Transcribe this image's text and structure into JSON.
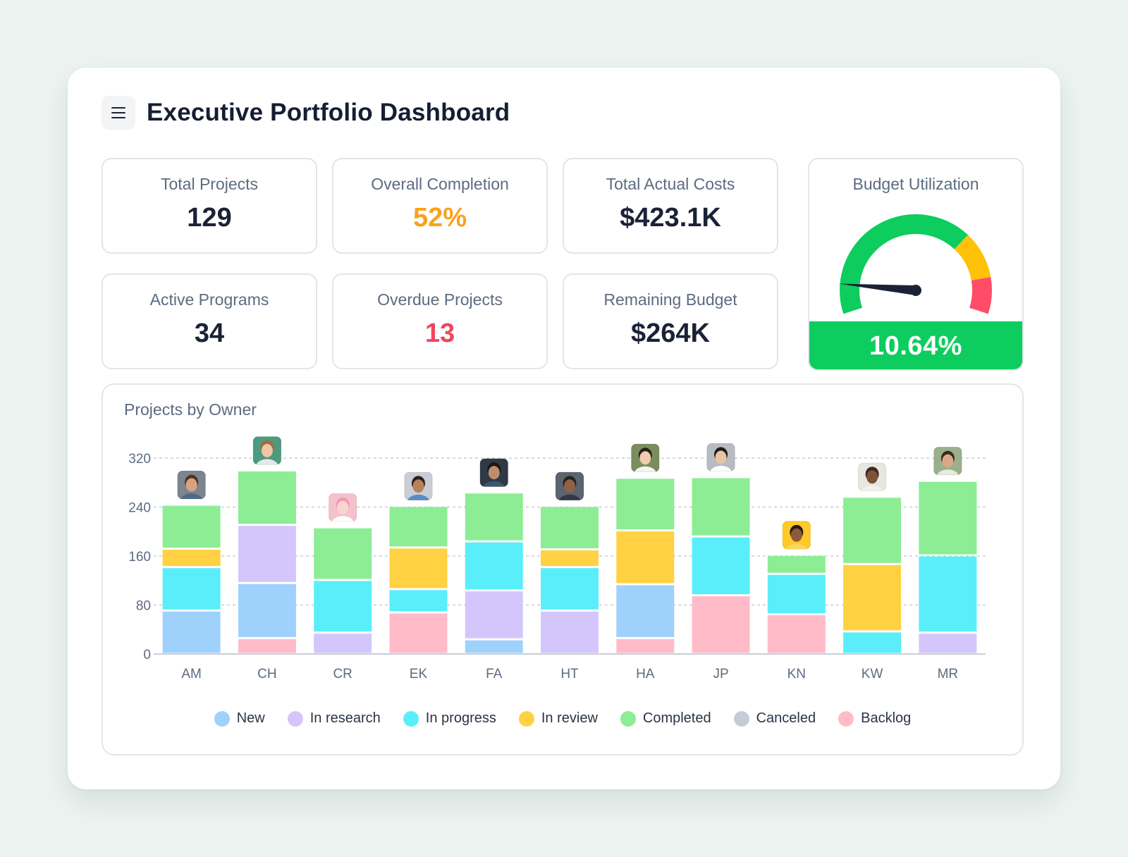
{
  "header": {
    "title": "Executive Portfolio Dashboard"
  },
  "kpis": [
    {
      "label": "Total Projects",
      "value": "129",
      "color": "#1b2236"
    },
    {
      "label": "Overall Completion",
      "value": "52%",
      "color": "#f8a21b"
    },
    {
      "label": "Total Actual Costs",
      "value": "$423.1K",
      "color": "#1b2236"
    },
    {
      "label": "Active Programs",
      "value": "34",
      "color": "#1b2236"
    },
    {
      "label": "Overdue Projects",
      "value": "13",
      "color": "#f0465f"
    },
    {
      "label": "Remaining Budget",
      "value": "$264K",
      "color": "#1b2236"
    }
  ],
  "gauge": {
    "label": "Budget Utilization",
    "value": "10.64%",
    "percent": 10.64,
    "segments": [
      {
        "to": 0.7,
        "color": "#0ccd5e"
      },
      {
        "to": 0.87,
        "color": "#ffc10a"
      },
      {
        "to": 1.0,
        "color": "#ff4d67"
      }
    ],
    "needle_color": "#1b2236"
  },
  "chart": {
    "title": "Projects by Owner",
    "legend": [
      {
        "name": "New",
        "color": "#9fd1fd"
      },
      {
        "name": "In research",
        "color": "#d4c6fc"
      },
      {
        "name": "In progress",
        "color": "#5aeefb"
      },
      {
        "name": "In review",
        "color": "#ffd143"
      },
      {
        "name": "Completed",
        "color": "#8ded95"
      },
      {
        "name": "Canceled",
        "color": "#c4ccd8"
      },
      {
        "name": "Backlog",
        "color": "#ffbcc8"
      }
    ]
  },
  "chart_data": {
    "type": "bar",
    "stacked": true,
    "categories": [
      "AM",
      "CH",
      "CR",
      "EK",
      "FA",
      "HT",
      "HA",
      "JP",
      "KN",
      "KW",
      "MR"
    ],
    "ylim": [
      0,
      320
    ],
    "yticks": [
      0,
      80,
      160,
      240,
      320
    ],
    "grid": true,
    "legend_position": "bottom",
    "series": [
      {
        "name": "Backlog",
        "values": [
          0,
          26,
          0,
          68,
          0,
          0,
          26,
          96,
          65,
          0,
          0
        ]
      },
      {
        "name": "New",
        "values": [
          71,
          90,
          0,
          0,
          24,
          0,
          88,
          0,
          0,
          0,
          0
        ]
      },
      {
        "name": "In research",
        "values": [
          0,
          95,
          35,
          0,
          80,
          71,
          0,
          0,
          0,
          0,
          35
        ]
      },
      {
        "name": "In progress",
        "values": [
          71,
          0,
          86,
          38,
          80,
          71,
          0,
          96,
          66,
          37,
          126
        ]
      },
      {
        "name": "In review",
        "values": [
          30,
          0,
          0,
          68,
          0,
          29,
          88,
          0,
          0,
          110,
          0
        ]
      },
      {
        "name": "Completed",
        "values": [
          72,
          89,
          86,
          68,
          80,
          71,
          86,
          97,
          31,
          110,
          122
        ]
      },
      {
        "name": "Canceled",
        "values": [
          0,
          0,
          0,
          0,
          0,
          0,
          0,
          0,
          0,
          0,
          0
        ]
      }
    ]
  },
  "avatars": [
    {
      "owner": "AM",
      "bg": "#7d8490",
      "skin": "#d9a27d",
      "hair": "#4b3626",
      "shirt": "#4c6b8c"
    },
    {
      "owner": "CH",
      "bg": "#4e9a7e",
      "skin": "#f0c5a8",
      "hair": "#a46b3b",
      "shirt": "#e8e8e8"
    },
    {
      "owner": "CR",
      "bg": "#f4c2cb",
      "skin": "#f7d6cf",
      "hair": "#f49ab5",
      "shirt": "#ffffff"
    },
    {
      "owner": "EK",
      "bg": "#c9ced6",
      "skin": "#b5825c",
      "hair": "#2b2019",
      "shirt": "#5a8bc4"
    },
    {
      "owner": "FA",
      "bg": "#2e3a45",
      "skin": "#c08d6c",
      "hair": "#1d1612",
      "shirt": "#3d5570"
    },
    {
      "owner": "HT",
      "bg": "#5b6470",
      "skin": "#8e6245",
      "hair": "#2a211b",
      "shirt": "#2f3a46"
    },
    {
      "owner": "HA",
      "bg": "#7a8d5e",
      "skin": "#efcdb1",
      "hair": "#2b2119",
      "shirt": "#f4f4f4"
    },
    {
      "owner": "JP",
      "bg": "#b8bcc2",
      "skin": "#e7c4a2",
      "hair": "#1f1915",
      "shirt": "#ffffff"
    },
    {
      "owner": "KN",
      "bg": "#ffc928",
      "skin": "#8c5b3c",
      "hair": "#241a14",
      "shirt": "#ffd75a"
    },
    {
      "owner": "KW",
      "bg": "#e9e6e0",
      "skin": "#7e5236",
      "hair": "#3a2a20",
      "shirt": "#f3f1ec"
    },
    {
      "owner": "MR",
      "bg": "#9ab08d",
      "skin": "#d9a987",
      "hair": "#3c281c",
      "shirt": "#e7eadf"
    }
  ]
}
